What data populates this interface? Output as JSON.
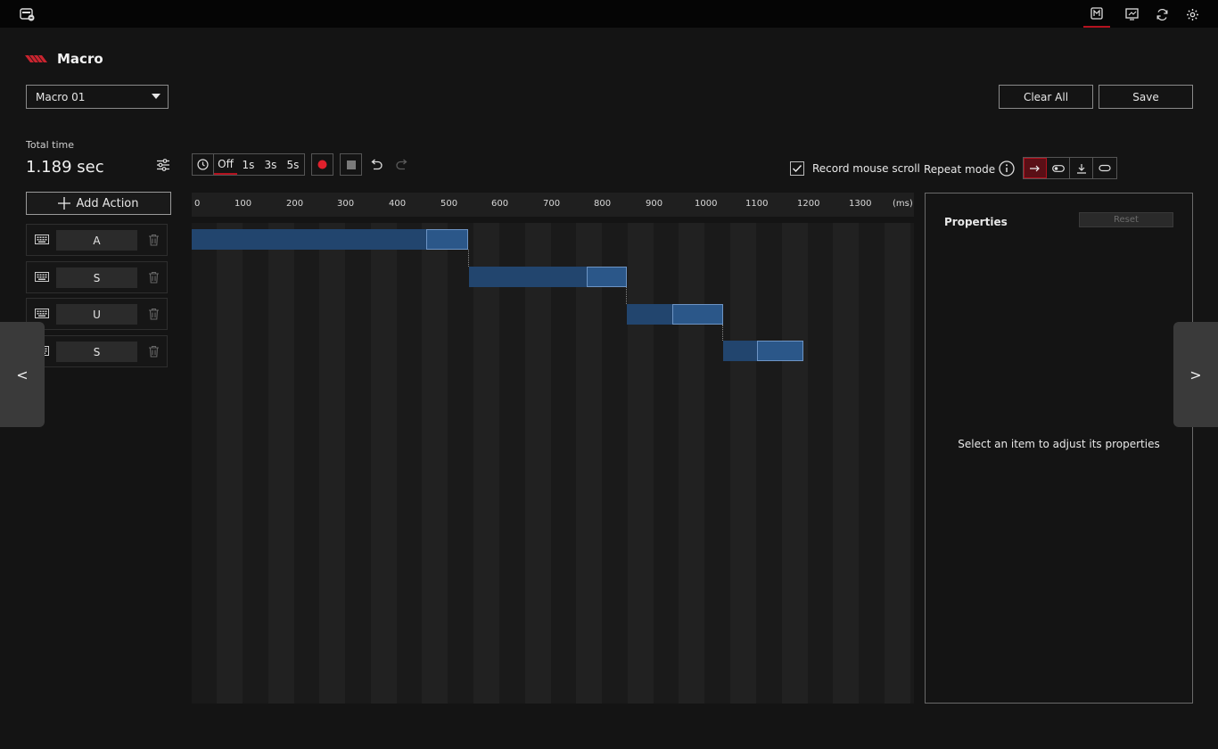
{
  "app": {
    "logo_icon": "headset-keyboard-logo-icon",
    "accent": "#b3121f"
  },
  "topbar": {
    "icons": [
      "macro-icon",
      "monitor-icon",
      "sync-icon",
      "gear-icon"
    ]
  },
  "page": {
    "title": "Macro"
  },
  "macro_select": {
    "value": "Macro 01"
  },
  "buttons": {
    "clear_all": "Clear All",
    "save": "Save"
  },
  "total": {
    "label": "Total time",
    "value": "1.189 sec"
  },
  "add_action": {
    "label": "Add Action"
  },
  "actions": [
    {
      "key": "A"
    },
    {
      "key": "S"
    },
    {
      "key": "U"
    },
    {
      "key": "S"
    }
  ],
  "toolbar": {
    "delay_options": [
      "Off",
      "1s",
      "3s",
      "5s"
    ],
    "delay_selected": "Off"
  },
  "record_scroll": {
    "label": "Record mouse scroll",
    "checked": true
  },
  "repeat": {
    "label": "Repeat mode",
    "selected": "once"
  },
  "timeline": {
    "ticks": [
      "0",
      "100",
      "200",
      "300",
      "400",
      "500",
      "600",
      "700",
      "800",
      "900",
      "1000",
      "1100",
      "1200",
      "1300"
    ],
    "unit": "(ms)",
    "events": [
      {
        "key": "A",
        "start_ms": 0,
        "end_ms": 535
      },
      {
        "key": "S",
        "start_ms": 540,
        "end_ms": 848
      },
      {
        "key": "U",
        "start_ms": 848,
        "end_ms": 1035
      },
      {
        "key": "S",
        "start_ms": 1035,
        "end_ms": 1190
      }
    ]
  },
  "properties": {
    "title": "Properties",
    "reset": "Reset",
    "hint": "Select an item to adjust its properties"
  },
  "nav": {
    "prev": "<",
    "next": ">"
  }
}
